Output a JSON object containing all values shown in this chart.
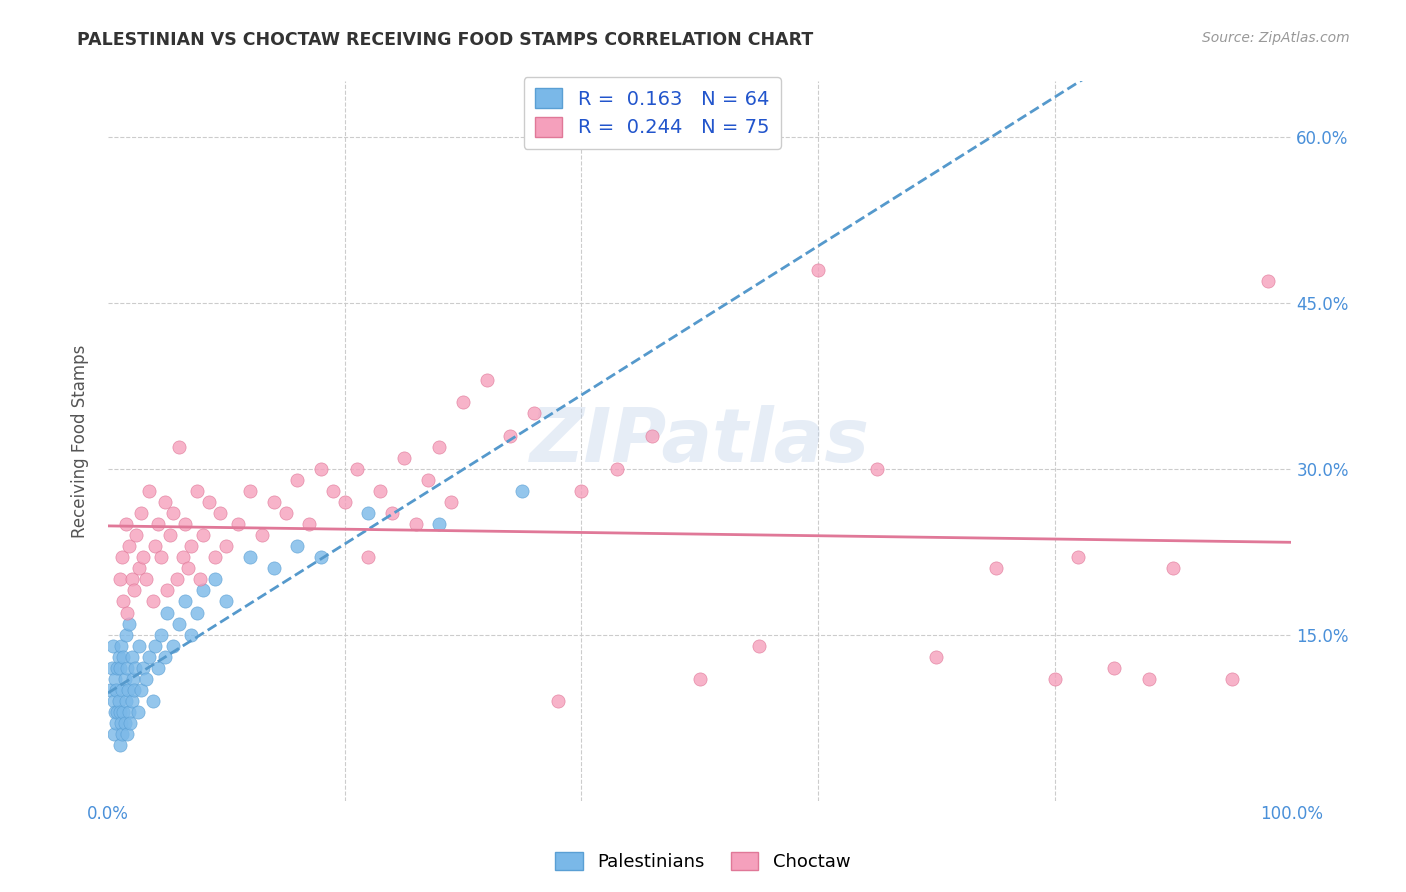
{
  "title": "PALESTINIAN VS CHOCTAW RECEIVING FOOD STAMPS CORRELATION CHART",
  "source": "Source: ZipAtlas.com",
  "ylabel": "Receiving Food Stamps",
  "xlim": [
    0.0,
    1.0
  ],
  "ylim": [
    0.0,
    0.65
  ],
  "x_ticks": [
    0.0,
    0.2,
    0.4,
    0.6,
    0.8,
    1.0
  ],
  "x_tick_labels": [
    "0.0%",
    "",
    "",
    "",
    "",
    "100.0%"
  ],
  "y_ticks": [
    0.15,
    0.3,
    0.45,
    0.6
  ],
  "y_tick_labels_right": [
    "15.0%",
    "30.0%",
    "45.0%",
    "60.0%"
  ],
  "grid_color": "#cccccc",
  "background_color": "#ffffff",
  "pal_color": "#7ab8e8",
  "pal_edge": "#5a9fd4",
  "pal_trend": "#5599cc",
  "choc_color": "#f5a0bc",
  "choc_edge": "#e07898",
  "choc_trend": "#e07898",
  "pal_x": [
    0.002,
    0.003,
    0.004,
    0.005,
    0.005,
    0.006,
    0.006,
    0.007,
    0.007,
    0.008,
    0.008,
    0.009,
    0.009,
    0.01,
    0.01,
    0.01,
    0.011,
    0.011,
    0.012,
    0.012,
    0.013,
    0.013,
    0.014,
    0.014,
    0.015,
    0.015,
    0.016,
    0.016,
    0.017,
    0.018,
    0.018,
    0.019,
    0.02,
    0.02,
    0.021,
    0.022,
    0.023,
    0.025,
    0.026,
    0.028,
    0.03,
    0.032,
    0.035,
    0.038,
    0.04,
    0.042,
    0.045,
    0.048,
    0.05,
    0.055,
    0.06,
    0.065,
    0.07,
    0.075,
    0.08,
    0.09,
    0.1,
    0.12,
    0.14,
    0.16,
    0.18,
    0.22,
    0.28,
    0.35
  ],
  "pal_y": [
    0.1,
    0.12,
    0.14,
    0.06,
    0.09,
    0.08,
    0.11,
    0.07,
    0.1,
    0.08,
    0.12,
    0.09,
    0.13,
    0.05,
    0.08,
    0.12,
    0.07,
    0.14,
    0.06,
    0.1,
    0.08,
    0.13,
    0.07,
    0.11,
    0.09,
    0.15,
    0.06,
    0.12,
    0.1,
    0.08,
    0.16,
    0.07,
    0.09,
    0.13,
    0.11,
    0.1,
    0.12,
    0.08,
    0.14,
    0.1,
    0.12,
    0.11,
    0.13,
    0.09,
    0.14,
    0.12,
    0.15,
    0.13,
    0.17,
    0.14,
    0.16,
    0.18,
    0.15,
    0.17,
    0.19,
    0.2,
    0.18,
    0.22,
    0.21,
    0.23,
    0.22,
    0.26,
    0.25,
    0.28
  ],
  "choc_x": [
    0.01,
    0.012,
    0.013,
    0.015,
    0.016,
    0.018,
    0.02,
    0.022,
    0.024,
    0.026,
    0.028,
    0.03,
    0.032,
    0.035,
    0.038,
    0.04,
    0.042,
    0.045,
    0.048,
    0.05,
    0.052,
    0.055,
    0.058,
    0.06,
    0.063,
    0.065,
    0.068,
    0.07,
    0.075,
    0.078,
    0.08,
    0.085,
    0.09,
    0.095,
    0.1,
    0.11,
    0.12,
    0.13,
    0.14,
    0.15,
    0.16,
    0.17,
    0.18,
    0.19,
    0.2,
    0.21,
    0.22,
    0.23,
    0.24,
    0.25,
    0.26,
    0.27,
    0.28,
    0.29,
    0.3,
    0.32,
    0.34,
    0.36,
    0.38,
    0.4,
    0.43,
    0.46,
    0.5,
    0.55,
    0.6,
    0.65,
    0.7,
    0.75,
    0.8,
    0.82,
    0.85,
    0.88,
    0.9,
    0.95,
    0.98
  ],
  "choc_y": [
    0.2,
    0.22,
    0.18,
    0.25,
    0.17,
    0.23,
    0.2,
    0.19,
    0.24,
    0.21,
    0.26,
    0.22,
    0.2,
    0.28,
    0.18,
    0.23,
    0.25,
    0.22,
    0.27,
    0.19,
    0.24,
    0.26,
    0.2,
    0.32,
    0.22,
    0.25,
    0.21,
    0.23,
    0.28,
    0.2,
    0.24,
    0.27,
    0.22,
    0.26,
    0.23,
    0.25,
    0.28,
    0.24,
    0.27,
    0.26,
    0.29,
    0.25,
    0.3,
    0.28,
    0.27,
    0.3,
    0.22,
    0.28,
    0.26,
    0.31,
    0.25,
    0.29,
    0.32,
    0.27,
    0.36,
    0.38,
    0.33,
    0.35,
    0.09,
    0.28,
    0.3,
    0.33,
    0.11,
    0.14,
    0.48,
    0.3,
    0.13,
    0.21,
    0.11,
    0.22,
    0.12,
    0.11,
    0.21,
    0.11,
    0.47
  ]
}
